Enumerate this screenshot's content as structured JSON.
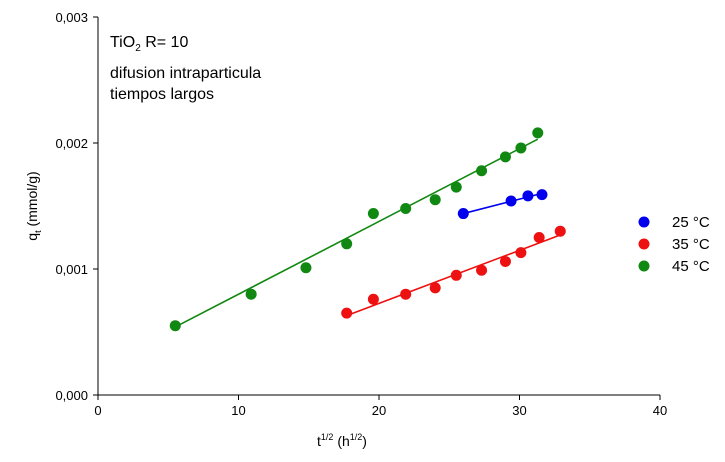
{
  "chart_data": {
    "type": "scatter",
    "title": "",
    "xlabel_main": "t",
    "xlabel_sup": "1/2",
    "xlabel_unit_open": " (h",
    "xlabel_unit_sup": "1/2",
    "xlabel_unit_close": ")",
    "ylabel_main": "q",
    "ylabel_sub": "t",
    "ylabel_unit": " (mmol/g)",
    "xlim": [
      0,
      40
    ],
    "ylim": [
      0,
      0.003
    ],
    "x_ticks": [
      {
        "value": 0,
        "label": "0"
      },
      {
        "value": 10,
        "label": "10"
      },
      {
        "value": 20,
        "label": "20"
      },
      {
        "value": 30,
        "label": "30"
      },
      {
        "value": 40,
        "label": "40"
      }
    ],
    "y_ticks": [
      {
        "value": 0,
        "label": "0,000"
      },
      {
        "value": 0.001,
        "label": "0,001"
      },
      {
        "value": 0.002,
        "label": "0,002"
      },
      {
        "value": 0.003,
        "label": "0,003"
      }
    ],
    "grid": false,
    "legend_position": "right",
    "annotations": {
      "line1_main": "TiO",
      "line1_sub": "2",
      "line1_rest": " R= 10",
      "line2": "difusion intraparticula",
      "line3": "tiempos largos"
    },
    "series": [
      {
        "name": "25 °C",
        "color": "#0000ee",
        "points": [
          [
            26.0,
            0.00144
          ],
          [
            29.4,
            0.00154
          ],
          [
            30.6,
            0.00158
          ],
          [
            31.6,
            0.00159
          ]
        ],
        "fit": [
          [
            26.0,
            0.00144
          ],
          [
            31.6,
            0.0016
          ]
        ]
      },
      {
        "name": "35 °C",
        "color": "#ee1111",
        "points": [
          [
            17.7,
            0.00065
          ],
          [
            19.6,
            0.00076
          ],
          [
            21.9,
            0.0008
          ],
          [
            24.0,
            0.00085
          ],
          [
            25.5,
            0.00095
          ],
          [
            27.3,
            0.00099
          ],
          [
            29.0,
            0.00106
          ],
          [
            30.1,
            0.00113
          ],
          [
            31.4,
            0.00125
          ],
          [
            32.9,
            0.0013
          ]
        ],
        "fit": [
          [
            17.7,
            0.00063
          ],
          [
            32.9,
            0.00127
          ]
        ]
      },
      {
        "name": "45 °C",
        "color": "#118811",
        "points": [
          [
            5.5,
            0.00055
          ],
          [
            10.9,
            0.0008
          ],
          [
            14.8,
            0.00101
          ],
          [
            17.7,
            0.0012
          ],
          [
            19.6,
            0.00144
          ],
          [
            21.9,
            0.00148
          ],
          [
            24.0,
            0.00155
          ],
          [
            25.5,
            0.00165
          ],
          [
            27.3,
            0.00178
          ],
          [
            29.0,
            0.00189
          ],
          [
            30.1,
            0.00196
          ],
          [
            31.3,
            0.00208
          ]
        ],
        "fit": [
          [
            5.5,
            0.00054
          ],
          [
            31.3,
            0.00203
          ]
        ]
      }
    ]
  }
}
